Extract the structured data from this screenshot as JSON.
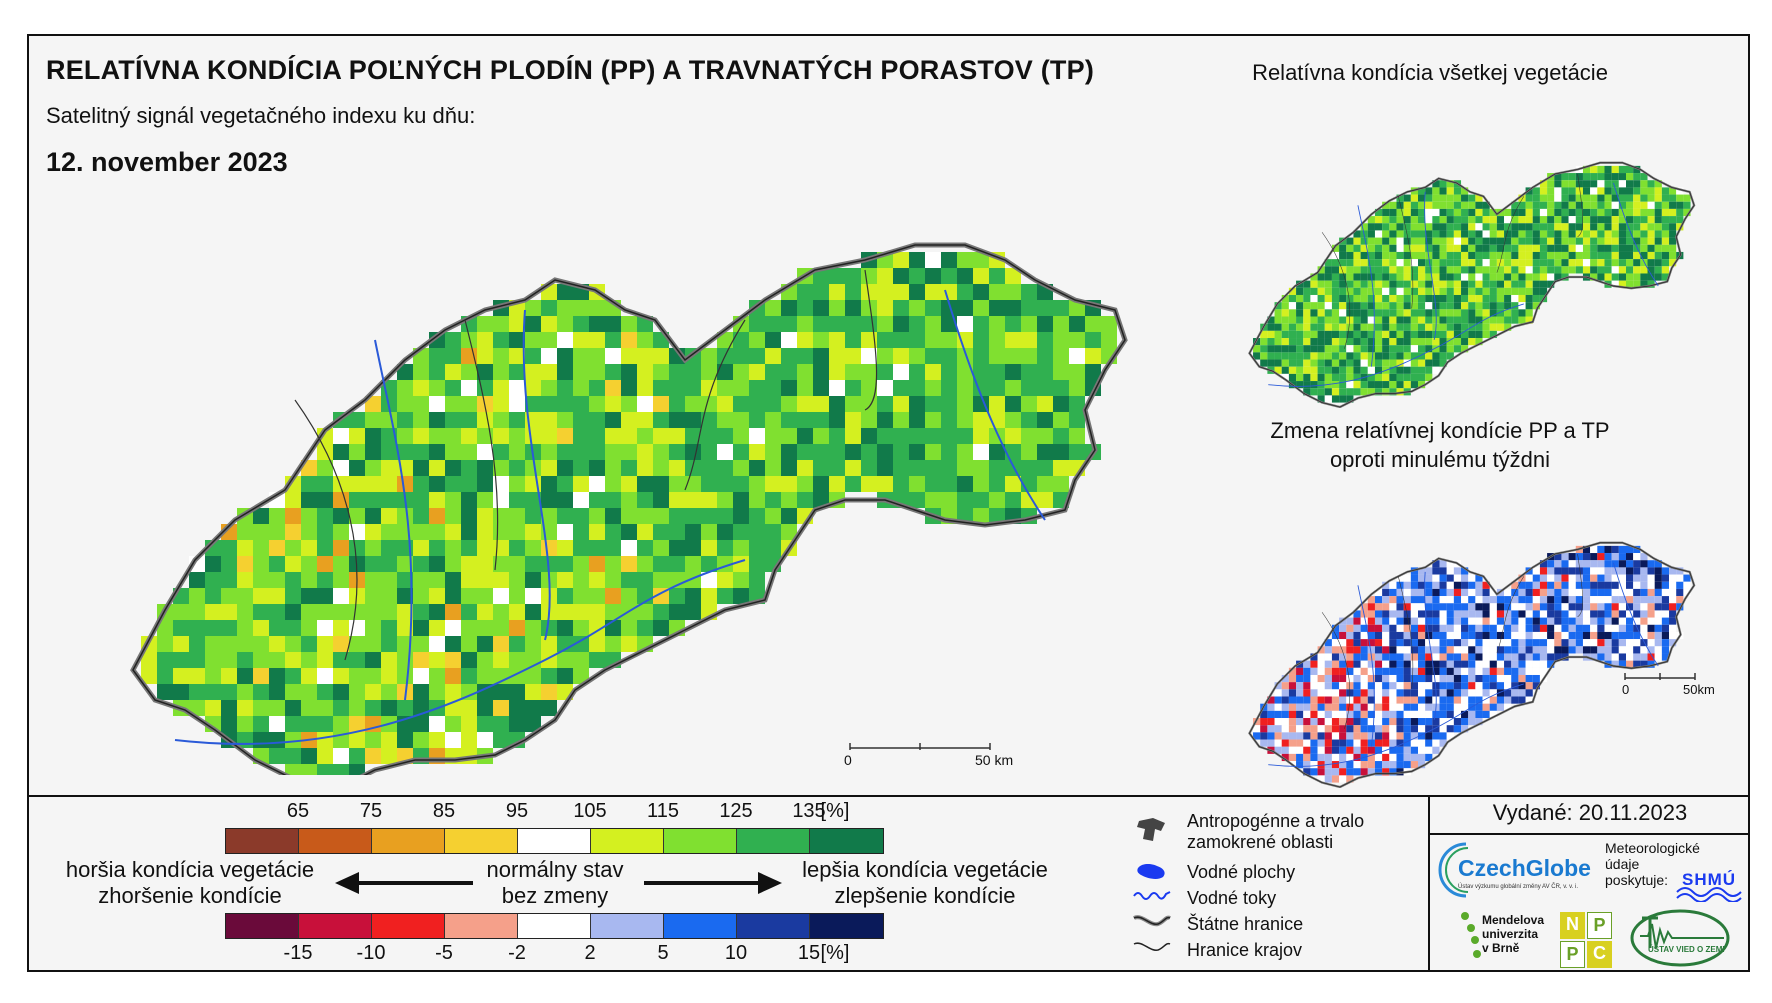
{
  "title": "RELATÍVNA KONDÍCIA POĽNÝCH PLODÍN (PP) A TRAVNATÝCH PORASTOV (TP)",
  "subtitle": "Satelitný signál vegetačného indexu ku dňu:",
  "date": "12. november 2023",
  "panel_all_vegetation": "Relatívna kondícia všetkej vegetácie",
  "panel_change_line1": "Zmena relatívnej kondície PP a TP",
  "panel_change_line2": "oproti minulému týždni",
  "scale_main": {
    "start": "0",
    "end": "50 km"
  },
  "scale_small": {
    "start": "0",
    "end": "50km"
  },
  "issued": "Vydané: 20.11.2023",
  "condition_legend": {
    "ticks": [
      "65",
      "75",
      "85",
      "95",
      "105",
      "115",
      "125",
      "135",
      "[%]"
    ],
    "colors": [
      "#8b3a2a",
      "#c85a1a",
      "#e8a020",
      "#f5d030",
      "#ffffff",
      "#d4f020",
      "#80e030",
      "#30b050",
      "#117a4a"
    ]
  },
  "change_legend": {
    "ticks": [
      "-15",
      "-10",
      "-5",
      "-2",
      "2",
      "5",
      "10",
      "15",
      "[%]"
    ],
    "colors": [
      "#6a0a3a",
      "#c8103a",
      "#f02020",
      "#f5a08a",
      "#ffffff",
      "#a8b8f0",
      "#1a6af0",
      "#1a3aa0",
      "#0a1a5a"
    ]
  },
  "worse_line1": "horšia kondícia vegetácie",
  "worse_line2": "zhoršenie kondície",
  "normal_line1": "normálny stav",
  "normal_line2": "bez zmeny",
  "better_line1": "lepšia kondícia vegetácie",
  "better_line2": "zlepšenie kondície",
  "map_legend": {
    "anthropogenic_line1": "Antropogénne a trvalo",
    "anthropogenic_line2": "zamokrené oblasti",
    "water_bodies": "Vodné plochy",
    "rivers": "Vodné toky",
    "state_border": "Štátne hranice",
    "regional_border": "Hranice krajov"
  },
  "logos": {
    "czechglobe": "CzechGlobe",
    "czechglobe_sub": "Ústav výzkumu globální změny AV ČR, v. v. i.",
    "met_line1": "Meteorologické",
    "met_line2": "údaje",
    "met_line3": "poskytuje:",
    "shmu": "SHMÚ",
    "mendel_line1": "Mendelova",
    "mendel_line2": "univerzita",
    "mendel_line3": "v Brně",
    "nppc": [
      "N",
      "P",
      "P",
      "C"
    ],
    "uvz": "ÚSTAV VIED O ZEMI"
  }
}
